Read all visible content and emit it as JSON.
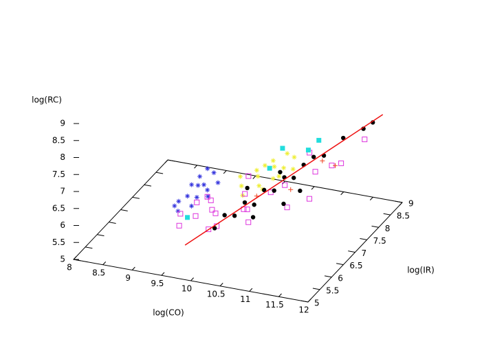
{
  "chart_data": {
    "type": "scatter3d",
    "xlabel": "log(CO)",
    "ylabel": "log(IR)",
    "zlabel": "log(RC)",
    "xlim": [
      8,
      12
    ],
    "ylim": [
      5,
      9
    ],
    "zlim": [
      5,
      9
    ],
    "xticks": [
      8,
      8.5,
      9,
      9.5,
      10,
      10.5,
      11,
      11.5,
      12
    ],
    "yticks": [
      5,
      5.5,
      6,
      6.5,
      7,
      7.5,
      8,
      8.5,
      9
    ],
    "zticks": [
      5,
      5.5,
      6,
      6.5,
      7,
      7.5,
      8,
      8.5,
      9
    ],
    "series": [
      {
        "marker": "star",
        "color": "#3333dd",
        "x": [
          9.2,
          9.3,
          9.4,
          9.25,
          9.5,
          9.35,
          9.6,
          9.45,
          9.15,
          9.55,
          9.7,
          9.3,
          9.4,
          9.65,
          9.5
        ],
        "y": [
          6.3,
          6.6,
          6.8,
          6.9,
          6.5,
          7.0,
          6.7,
          6.4,
          6.6,
          7.1,
          6.9,
          6.2,
          7.2,
          6.6,
          6.8
        ],
        "z": [
          6.0,
          6.1,
          6.3,
          6.2,
          6.2,
          6.4,
          6.3,
          6.0,
          5.9,
          6.5,
          6.4,
          5.95,
          6.5,
          6.2,
          6.35
        ]
      },
      {
        "marker": "star",
        "color": "#eeee33",
        "x": [
          9.9,
          10.1,
          10.3,
          10.0,
          10.4,
          10.2,
          10.5,
          9.8,
          10.6,
          10.3,
          10.1,
          10.7,
          10.4,
          10.0,
          10.2,
          10.5
        ],
        "y": [
          7.4,
          7.6,
          7.8,
          7.2,
          7.5,
          8.0,
          7.7,
          7.6,
          7.9,
          7.3,
          7.9,
          7.6,
          8.1,
          7.8,
          7.4,
          7.5
        ],
        "z": [
          6.0,
          6.2,
          6.4,
          5.9,
          6.3,
          6.4,
          6.5,
          6.1,
          6.7,
          6.1,
          6.3,
          6.6,
          6.6,
          6.2,
          6.1,
          6.4
        ]
      },
      {
        "marker": "square-open",
        "color": "#dd33dd",
        "x": [
          9.4,
          9.6,
          9.8,
          10.0,
          9.7,
          9.5,
          9.9,
          10.2,
          10.4,
          10.6,
          10.8,
          11.0,
          11.2,
          11.4,
          9.3,
          10.1,
          10.5,
          11.6,
          11.8,
          10.9,
          9.9,
          10.3,
          11.3,
          9.6
        ],
        "y": [
          6.0,
          6.2,
          6.4,
          6.1,
          6.6,
          6.5,
          6.3,
          6.8,
          6.4,
          6.9,
          7.0,
          6.6,
          7.3,
          7.5,
          6.3,
          7.2,
          6.2,
          7.4,
          7.9,
          7.8,
          6.0,
          6.5,
          6.8,
          6.7
        ],
        "z": [
          5.7,
          5.9,
          6.0,
          5.8,
          6.1,
          6.05,
          6.0,
          6.3,
          6.2,
          6.4,
          6.6,
          6.3,
          6.9,
          7.0,
          5.8,
          6.5,
          6.0,
          7.2,
          7.6,
          7.0,
          5.75,
          6.1,
          6.5,
          6.1
        ]
      },
      {
        "marker": "plus",
        "color": "#ee4422",
        "x": [
          11.2,
          10.9,
          10.4,
          11.5
        ],
        "y": [
          7.6,
          7.0,
          6.8,
          7.4
        ],
        "z": [
          7.0,
          6.5,
          6.3,
          7.1
        ]
      },
      {
        "marker": "circle",
        "color": "#000000",
        "x": [
          9.88,
          10.01,
          10.14,
          10.27,
          10.39,
          10.52,
          10.65,
          10.78,
          10.9,
          11.03,
          11.16,
          11.29,
          11.54,
          11.8,
          11.92,
          10.5,
          10.9,
          11.1,
          10.2,
          10.6
        ],
        "y": [
          6.31,
          6.41,
          6.51,
          6.62,
          6.72,
          6.82,
          6.92,
          7.03,
          7.13,
          7.23,
          7.33,
          7.44,
          7.64,
          7.85,
          7.95,
          6.4,
          6.7,
          6.9,
          6.9,
          7.3
        ],
        "z": [
          5.55,
          5.9,
          5.85,
          6.2,
          6.1,
          6.5,
          6.45,
          6.8,
          6.75,
          7.1,
          7.3,
          7.3,
          7.75,
          7.95,
          8.1,
          6.0,
          6.3,
          6.6,
          6.4,
          6.7
        ]
      },
      {
        "marker": "square",
        "color": "#22dddd",
        "x": [
          10.4,
          10.8,
          10.3,
          9.5,
          11.1
        ],
        "y": [
          7.9,
          8.0,
          7.6,
          6.1,
          7.7
        ],
        "z": [
          6.9,
          6.9,
          6.5,
          5.9,
          7.5
        ]
      },
      {
        "marker": "line",
        "color": "#ee1111",
        "x": [
          9.5,
          12.05
        ],
        "y": [
          6,
          8.05
        ],
        "z": [
          5.16,
          8.3
        ]
      }
    ]
  }
}
